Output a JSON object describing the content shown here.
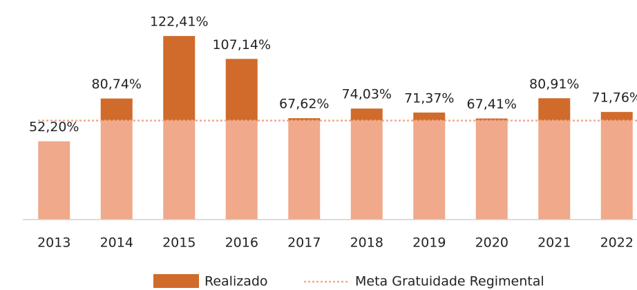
{
  "chart_data": {
    "type": "bar",
    "categories": [
      "2013",
      "2014",
      "2015",
      "2016",
      "2017",
      "2018",
      "2019",
      "2020",
      "2021",
      "2022"
    ],
    "series": [
      {
        "name": "Realizado",
        "color": "#d06b2b",
        "values": [
          52.2,
          80.74,
          122.41,
          107.14,
          67.62,
          74.03,
          71.37,
          67.41,
          80.91,
          71.76
        ],
        "value_labels": [
          "52,20%",
          "80,74%",
          "122,41%",
          "107,14%",
          "67,62%",
          "74,03%",
          "71,37%",
          "67,41%",
          "80,91%",
          "71,76%"
        ]
      }
    ],
    "threshold": {
      "name": "Meta Gratuidade Regimental",
      "value": 66,
      "color": "#f0a98a"
    },
    "ylim": [
      0,
      128
    ]
  }
}
